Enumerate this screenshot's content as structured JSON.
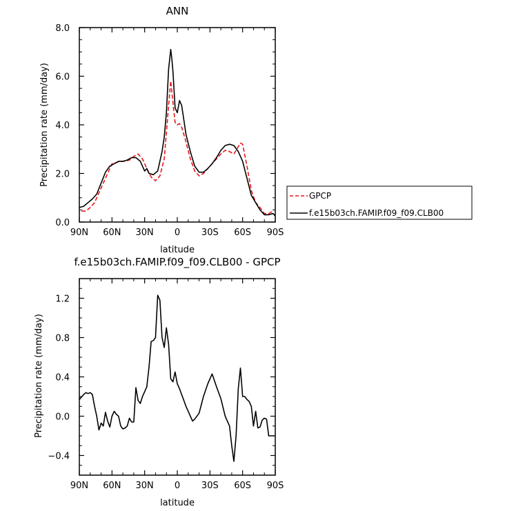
{
  "chart_data": [
    {
      "type": "line",
      "title": "ANN",
      "xlabel": "latitude",
      "ylabel": "Precipitation rate  (mm/day)",
      "xlim": [
        90,
        -90
      ],
      "ylim": [
        0,
        8
      ],
      "x_ticks": [
        90,
        60,
        30,
        0,
        -30,
        -60,
        -90
      ],
      "x_tick_labels": [
        "90N",
        "60N",
        "30N",
        "0",
        "30S",
        "60S",
        "90S"
      ],
      "y_ticks": [
        0,
        2,
        4,
        6,
        8
      ],
      "y_tick_labels": [
        "0.0",
        "2.0",
        "4.0",
        "6.0",
        "8.0"
      ],
      "legend": {
        "placement": "right",
        "entries": [
          "GPCP",
          "f.e15b03ch.FAMIP.f09_f09.CLB00"
        ]
      },
      "series": [
        {
          "name": "GPCP",
          "color": "#e8141a",
          "dash": "dashed",
          "x": [
            88,
            84,
            80,
            76,
            72,
            68,
            64,
            60,
            56,
            52,
            48,
            44,
            40,
            36,
            32,
            28,
            24,
            20,
            16,
            12,
            8,
            6,
            4,
            2,
            0,
            -2,
            -4,
            -6,
            -8,
            -12,
            -16,
            -20,
            -24,
            -28,
            -32,
            -36,
            -40,
            -44,
            -48,
            -52,
            -56,
            -58,
            -60,
            -64,
            -68,
            -72,
            -76,
            -80,
            -84,
            -88
          ],
          "y": [
            0.45,
            0.45,
            0.6,
            0.8,
            1.2,
            1.6,
            2.0,
            2.4,
            2.45,
            2.5,
            2.5,
            2.55,
            2.7,
            2.8,
            2.6,
            2.2,
            1.85,
            1.7,
            1.9,
            2.6,
            4.8,
            5.8,
            4.9,
            4.1,
            4.0,
            4.05,
            3.9,
            3.6,
            3.3,
            2.6,
            2.1,
            1.9,
            2.0,
            2.2,
            2.4,
            2.6,
            2.8,
            2.95,
            2.9,
            2.8,
            3.1,
            3.25,
            3.2,
            2.3,
            1.3,
            0.8,
            0.6,
            0.35,
            0.35,
            0.45
          ]
        },
        {
          "name": "f.e15b03ch.FAMIP.f09_f09.CLB00",
          "color": "#000000",
          "dash": "solid",
          "x": [
            90,
            86,
            82,
            78,
            74,
            70,
            66,
            62,
            58,
            54,
            50,
            46,
            42,
            38,
            34,
            32,
            30,
            28,
            26,
            22,
            18,
            14,
            12,
            10,
            8,
            6,
            5,
            4,
            2,
            0,
            -2,
            -4,
            -6,
            -8,
            -12,
            -16,
            -20,
            -24,
            -28,
            -32,
            -36,
            -40,
            -44,
            -48,
            -52,
            -56,
            -60,
            -64,
            -68,
            -72,
            -76,
            -80,
            -84,
            -88,
            -90
          ],
          "y": [
            0.6,
            0.65,
            0.8,
            0.95,
            1.15,
            1.6,
            2.05,
            2.3,
            2.4,
            2.5,
            2.5,
            2.55,
            2.65,
            2.65,
            2.5,
            2.3,
            2.1,
            2.2,
            2.0,
            1.95,
            2.1,
            2.9,
            3.5,
            4.5,
            6.3,
            7.1,
            6.7,
            6.2,
            4.7,
            4.5,
            5.0,
            4.8,
            4.2,
            3.6,
            2.9,
            2.3,
            2.05,
            2.05,
            2.2,
            2.4,
            2.65,
            2.95,
            3.15,
            3.2,
            3.15,
            2.9,
            2.5,
            1.8,
            1.1,
            0.8,
            0.5,
            0.3,
            0.3,
            0.35,
            0.25
          ]
        }
      ]
    },
    {
      "type": "line",
      "title": "f.e15b03ch.FAMIP.f09_f09.CLB00 - GPCP",
      "xlabel": "latitude",
      "ylabel": "Precipitation rate  (mm/day)",
      "xlim": [
        90,
        -90
      ],
      "ylim": [
        -0.6,
        1.4
      ],
      "x_ticks": [
        90,
        60,
        30,
        0,
        -30,
        -60,
        -90
      ],
      "x_tick_labels": [
        "90N",
        "60N",
        "30N",
        "0",
        "30S",
        "60S",
        "90S"
      ],
      "y_ticks": [
        -0.4,
        0.0,
        0.4,
        0.8,
        1.2
      ],
      "y_tick_labels": [
        "−0.4",
        "0.0",
        "0.4",
        "0.8",
        "1.2"
      ],
      "series": [
        {
          "color": "#000000",
          "dash": "solid",
          "x": [
            90,
            86,
            84,
            82,
            80,
            78,
            76,
            74,
            72,
            70,
            68,
            66,
            64,
            62,
            60,
            58,
            56,
            54,
            52,
            50,
            48,
            46,
            44,
            42,
            40,
            38,
            36,
            34,
            32,
            30,
            28,
            26,
            24,
            22,
            20,
            18,
            16,
            14,
            12,
            10,
            8,
            6,
            4,
            2,
            0,
            -2,
            -4,
            -6,
            -8,
            -10,
            -12,
            -14,
            -16,
            -20,
            -24,
            -28,
            -32,
            -36,
            -40,
            -44,
            -48,
            -50,
            -52,
            -54,
            -56,
            -58,
            -60,
            -62,
            -64,
            -66,
            -68,
            -70,
            -72,
            -74,
            -76,
            -78,
            -80,
            -82,
            -84,
            -86,
            -88,
            -90
          ],
          "y": [
            0.17,
            0.22,
            0.24,
            0.23,
            0.24,
            0.22,
            0.1,
            0.0,
            -0.14,
            -0.07,
            -0.1,
            0.04,
            -0.05,
            -0.11,
            0.0,
            0.05,
            0.02,
            0.0,
            -0.1,
            -0.13,
            -0.12,
            -0.1,
            -0.02,
            -0.06,
            -0.06,
            0.29,
            0.16,
            0.13,
            0.2,
            0.25,
            0.3,
            0.5,
            0.76,
            0.77,
            0.8,
            1.23,
            1.18,
            0.8,
            0.7,
            0.9,
            0.73,
            0.38,
            0.35,
            0.45,
            0.33,
            0.28,
            0.22,
            0.16,
            0.1,
            0.05,
            0.0,
            -0.05,
            -0.03,
            0.03,
            0.2,
            0.33,
            0.43,
            0.3,
            0.18,
            0.0,
            -0.1,
            -0.3,
            -0.46,
            -0.2,
            0.28,
            0.49,
            0.2,
            0.2,
            0.17,
            0.15,
            0.1,
            -0.1,
            0.05,
            -0.12,
            -0.11,
            -0.04,
            -0.02,
            -0.03,
            -0.2,
            -0.2,
            -0.2,
            -0.2
          ]
        }
      ]
    }
  ]
}
